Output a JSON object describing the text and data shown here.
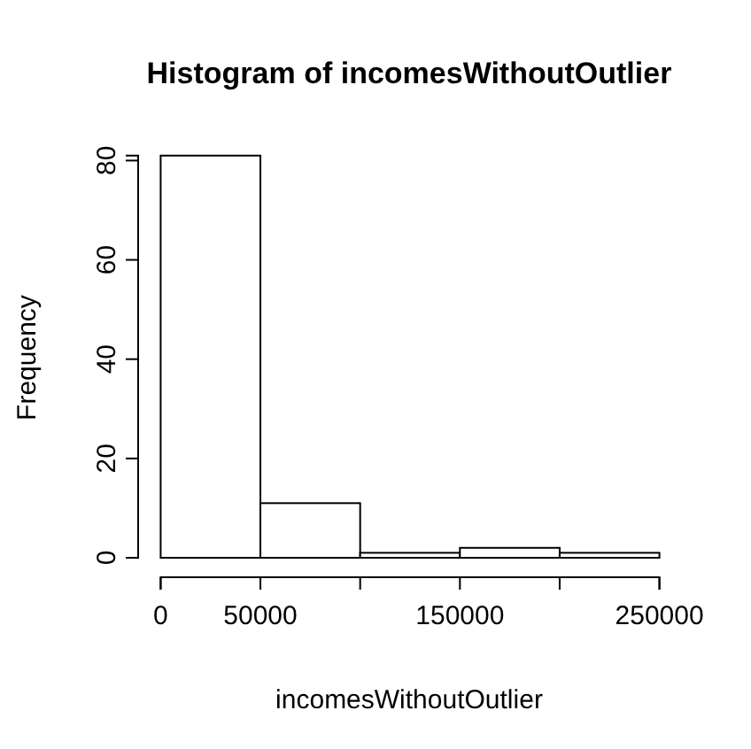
{
  "chart_data": {
    "type": "histogram",
    "title": "Histogram of incomesWithoutOutlier",
    "xlabel": "incomesWithoutOutlier",
    "ylabel": "Frequency",
    "bins": [
      0,
      50000,
      100000,
      150000,
      200000,
      250000
    ],
    "values": [
      81,
      11,
      1,
      2,
      1
    ],
    "color": "#ffffff",
    "xlim": [
      0,
      250000
    ],
    "ylim": [
      0,
      81
    ],
    "xticks": [
      0,
      50000,
      {
        "value": 100000,
        "label": null
      },
      150000,
      {
        "value": 200000,
        "label": null
      },
      250000
    ],
    "yticks": [
      0,
      20,
      40,
      60,
      80
    ],
    "grid": false
  }
}
